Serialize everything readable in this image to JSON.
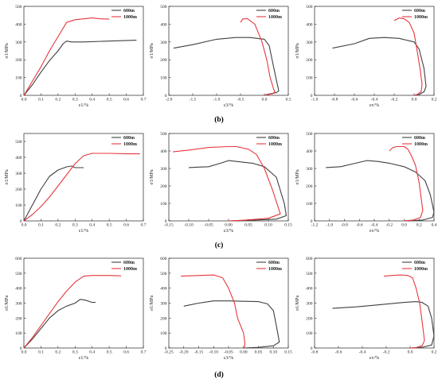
{
  "row_labels": [
    "(b)",
    "(c)",
    "(d)"
  ],
  "colors": {
    "600m": "#404040",
    "1000m": "#e8373e",
    "axis": "#222222"
  },
  "chart_data": [
    {
      "type": "line",
      "xlabel": "ε1/%",
      "ylabel": "σ1/MPa",
      "xlim": [
        0,
        0.7
      ],
      "ylim": [
        0,
        500
      ],
      "xticks": [
        0,
        0.1,
        0.2,
        0.3,
        0.4,
        0.5,
        0.6,
        0.7
      ],
      "xtick_labels": [
        "0.0",
        "0.1",
        "0.2",
        "0.3",
        "0.4",
        "0.5",
        "0.6",
        "0.7"
      ],
      "yticks": [
        0,
        100,
        200,
        300,
        400,
        500
      ],
      "ytick_labels": [
        "0",
        "100",
        "200",
        "300",
        "400",
        "500"
      ],
      "legend": "top-right",
      "series": [
        {
          "name": "600m",
          "color": "#404040",
          "x": [
            0,
            0.05,
            0.1,
            0.15,
            0.2,
            0.23,
            0.25,
            0.28,
            0.35,
            0.5,
            0.66
          ],
          "y": [
            0,
            60,
            130,
            195,
            250,
            290,
            305,
            300,
            300,
            305,
            310
          ]
        },
        {
          "name": "1000m",
          "color": "#e8373e",
          "x": [
            0,
            0.05,
            0.1,
            0.15,
            0.2,
            0.25,
            0.3,
            0.35,
            0.4,
            0.45,
            0.5
          ],
          "y": [
            0,
            80,
            160,
            250,
            330,
            410,
            425,
            430,
            435,
            430,
            428
          ]
        }
      ]
    },
    {
      "type": "line",
      "xlabel": "ε3/%",
      "ylabel": "σ1/MPa",
      "xlim": [
        -2.0,
        0.5
      ],
      "ylim": [
        0,
        500
      ],
      "xticks": [
        -2.0,
        -1.5,
        -1.0,
        -0.5,
        0.0,
        0.5
      ],
      "xtick_labels": [
        "-2.0",
        "-1.5",
        "-1.0",
        "-0.5",
        "0.0",
        "0.5"
      ],
      "yticks": [
        0,
        100,
        200,
        300,
        400,
        500
      ],
      "ytick_labels": [
        "0",
        "100",
        "200",
        "300",
        "400",
        "500"
      ],
      "legend": "top-right",
      "series": [
        {
          "name": "600m",
          "color": "#404040",
          "x": [
            -1.9,
            -1.5,
            -1.0,
            -0.6,
            -0.3,
            0.0,
            0.1,
            0.2,
            0.3,
            0.25,
            0.05,
            0
          ],
          "y": [
            265,
            285,
            315,
            325,
            325,
            315,
            280,
            150,
            25,
            15,
            5,
            0
          ]
        },
        {
          "name": "1000m",
          "color": "#e8373e",
          "x": [
            -0.5,
            -0.45,
            -0.35,
            -0.2,
            -0.05,
            0.05,
            0.12,
            0.2,
            0.22,
            0.18,
            0.05,
            0
          ],
          "y": [
            410,
            430,
            430,
            400,
            300,
            200,
            100,
            30,
            20,
            10,
            3,
            0
          ]
        }
      ]
    },
    {
      "type": "line",
      "xlabel": "εv/%",
      "ylabel": "σ1/MPa",
      "xlim": [
        -1.0,
        0.2
      ],
      "ylim": [
        0,
        500
      ],
      "xticks": [
        -1.0,
        -0.8,
        -0.6,
        -0.4,
        -0.2,
        0.0,
        0.2
      ],
      "xtick_labels": [
        "-1.0",
        "-0.8",
        "-0.6",
        "-0.4",
        "-0.2",
        "0.0",
        "0.2"
      ],
      "yticks": [
        0,
        100,
        200,
        300,
        400,
        500
      ],
      "ytick_labels": [
        "0",
        "100",
        "200",
        "300",
        "400",
        "500"
      ],
      "legend": "top-right",
      "series": [
        {
          "name": "600m",
          "color": "#404040",
          "x": [
            -0.82,
            -0.6,
            -0.45,
            -0.3,
            -0.15,
            0.0,
            0.05,
            0.1,
            0.12,
            0.1,
            0.05,
            0
          ],
          "y": [
            265,
            290,
            320,
            325,
            320,
            300,
            260,
            150,
            50,
            20,
            5,
            0
          ]
        },
        {
          "name": "1000m",
          "color": "#e8373e",
          "x": [
            -0.2,
            -0.15,
            -0.1,
            -0.05,
            0.0,
            0.03,
            0.06,
            0.08,
            0.07,
            0.03,
            0
          ],
          "y": [
            420,
            435,
            430,
            410,
            350,
            250,
            150,
            60,
            20,
            5,
            0
          ]
        }
      ]
    },
    {
      "type": "line",
      "xlabel": "ε1/%",
      "ylabel": "σ1/MPa",
      "xlim": [
        0,
        0.7
      ],
      "ylim": [
        0,
        550
      ],
      "xticks": [
        0,
        0.1,
        0.2,
        0.3,
        0.4,
        0.5,
        0.6,
        0.7
      ],
      "xtick_labels": [
        "0.0",
        "0.1",
        "0.2",
        "0.3",
        "0.4",
        "0.5",
        "0.6",
        "0.7"
      ],
      "yticks": [
        0,
        100,
        200,
        300,
        400,
        500
      ],
      "ytick_labels": [
        "0",
        "100",
        "200",
        "300",
        "400",
        "500"
      ],
      "legend": "top-right",
      "series": [
        {
          "name": "600m",
          "color": "#404040",
          "x": [
            0,
            0.05,
            0.1,
            0.15,
            0.2,
            0.25,
            0.28,
            0.3,
            0.33,
            0.35
          ],
          "y": [
            0,
            100,
            200,
            280,
            320,
            340,
            345,
            335,
            335,
            335
          ]
        },
        {
          "name": "1000m",
          "color": "#e8373e",
          "x": [
            0,
            0.05,
            0.1,
            0.15,
            0.2,
            0.25,
            0.3,
            0.35,
            0.4,
            0.5,
            0.6,
            0.68
          ],
          "y": [
            0,
            40,
            90,
            150,
            220,
            290,
            360,
            410,
            425,
            425,
            422,
            422
          ]
        }
      ]
    },
    {
      "type": "line",
      "xlabel": "ε3/%",
      "ylabel": "σ1/MPa",
      "xlim": [
        -0.15,
        0.15
      ],
      "ylim": [
        0,
        500
      ],
      "xticks": [
        -0.15,
        -0.1,
        -0.05,
        0.0,
        0.05,
        0.1,
        0.15
      ],
      "xtick_labels": [
        "-0.15",
        "-0.10",
        "-0.05",
        "0.00",
        "0.05",
        "0.10",
        "0.15"
      ],
      "yticks": [
        0,
        100,
        200,
        300,
        400,
        500
      ],
      "ytick_labels": [
        "0",
        "100",
        "200",
        "300",
        "400",
        "500"
      ],
      "legend": "top-right",
      "series": [
        {
          "name": "600m",
          "color": "#404040",
          "x": [
            -0.1,
            -0.05,
            -0.02,
            0.0,
            0.02,
            0.06,
            0.09,
            0.12,
            0.14,
            0.145,
            0.12,
            0.05,
            0
          ],
          "y": [
            305,
            310,
            330,
            345,
            340,
            330,
            310,
            250,
            100,
            30,
            10,
            3,
            0
          ]
        },
        {
          "name": "1000m",
          "color": "#e8373e",
          "x": [
            -0.14,
            -0.1,
            -0.05,
            0.0,
            0.02,
            0.05,
            0.07,
            0.09,
            0.11,
            0.13,
            0.1,
            0.04,
            0
          ],
          "y": [
            395,
            405,
            420,
            425,
            425,
            410,
            380,
            300,
            180,
            40,
            15,
            4,
            0
          ]
        }
      ]
    },
    {
      "type": "line",
      "xlabel": "εv/%",
      "ylabel": "σ1/MPa",
      "xlim": [
        -1.2,
        0.4
      ],
      "ylim": [
        0,
        500
      ],
      "xticks": [
        -1.2,
        -1.0,
        -0.8,
        -0.6,
        -0.4,
        -0.2,
        0.0,
        0.2,
        0.4
      ],
      "xtick_labels": [
        "-1.2",
        "-1.0",
        "-0.8",
        "-0.6",
        "-0.4",
        "-0.2",
        "0.0",
        "0.2",
        "0.4"
      ],
      "yticks": [
        0,
        100,
        200,
        300,
        400,
        500
      ],
      "ytick_labels": [
        "0",
        "100",
        "200",
        "300",
        "400",
        "500"
      ],
      "legend": "top-right",
      "series": [
        {
          "name": "600m",
          "color": "#404040",
          "x": [
            -1.05,
            -0.85,
            -0.65,
            -0.5,
            -0.35,
            -0.2,
            0.0,
            0.15,
            0.28,
            0.35,
            0.4,
            0.38,
            0.25,
            0
          ],
          "y": [
            305,
            310,
            330,
            345,
            340,
            330,
            310,
            280,
            230,
            150,
            50,
            20,
            5,
            0
          ]
        },
        {
          "name": "1000m",
          "color": "#e8373e",
          "x": [
            -0.2,
            -0.15,
            -0.1,
            0.0,
            0.05,
            0.1,
            0.15,
            0.2,
            0.25,
            0.22,
            0.12,
            0
          ],
          "y": [
            400,
            420,
            425,
            425,
            410,
            370,
            320,
            220,
            60,
            20,
            5,
            0
          ]
        }
      ]
    },
    {
      "type": "line",
      "xlabel": "ε1/%",
      "ylabel": "σ1/MPa",
      "xlim": [
        0,
        0.7
      ],
      "ylim": [
        0,
        600
      ],
      "xticks": [
        0,
        0.1,
        0.2,
        0.3,
        0.4,
        0.5,
        0.6,
        0.7
      ],
      "xtick_labels": [
        "0.0",
        "0.1",
        "0.2",
        "0.3",
        "0.4",
        "0.5",
        "0.6",
        "0.7"
      ],
      "yticks": [
        0,
        100,
        200,
        300,
        400,
        500,
        600
      ],
      "ytick_labels": [
        "0",
        "100",
        "200",
        "300",
        "400",
        "500",
        "600"
      ],
      "legend": "top-right",
      "series": [
        {
          "name": "600m",
          "color": "#404040",
          "x": [
            0,
            0.05,
            0.1,
            0.15,
            0.2,
            0.25,
            0.3,
            0.33,
            0.36,
            0.4,
            0.42
          ],
          "y": [
            0,
            60,
            130,
            200,
            250,
            280,
            300,
            325,
            320,
            305,
            305
          ]
        },
        {
          "name": "1000m",
          "color": "#e8373e",
          "x": [
            0,
            0.05,
            0.1,
            0.15,
            0.2,
            0.25,
            0.3,
            0.35,
            0.4,
            0.5,
            0.57
          ],
          "y": [
            0,
            70,
            150,
            230,
            310,
            380,
            440,
            480,
            485,
            485,
            482
          ]
        }
      ]
    },
    {
      "type": "line",
      "xlabel": "ε3/%",
      "ylabel": "σ1/MPa",
      "xlim": [
        -0.25,
        0.15
      ],
      "ylim": [
        0,
        600
      ],
      "xticks": [
        -0.25,
        -0.2,
        -0.15,
        -0.1,
        -0.05,
        0.0,
        0.05,
        0.1,
        0.15
      ],
      "xtick_labels": [
        "-0.25",
        "-0.20",
        "-0.15",
        "-0.10",
        "-0.05",
        "0.00",
        "0.05",
        "0.10",
        "0.15"
      ],
      "yticks": [
        0,
        100,
        200,
        300,
        400,
        500,
        600
      ],
      "ytick_labels": [
        "0",
        "100",
        "200",
        "300",
        "400",
        "500",
        "600"
      ],
      "legend": "top-right",
      "series": [
        {
          "name": "600m",
          "color": "#404040",
          "x": [
            -0.2,
            -0.15,
            -0.1,
            -0.05,
            0.0,
            0.05,
            0.08,
            0.1,
            0.11,
            0.12,
            0.1,
            0.05,
            0
          ],
          "y": [
            280,
            300,
            315,
            315,
            312,
            310,
            295,
            250,
            150,
            40,
            15,
            4,
            0
          ]
        },
        {
          "name": "1000m",
          "color": "#e8373e",
          "x": [
            -0.21,
            -0.15,
            -0.1,
            -0.07,
            -0.05,
            -0.03,
            -0.02,
            0.0,
            0.005,
            0.003,
            0
          ],
          "y": [
            480,
            485,
            488,
            470,
            400,
            300,
            200,
            100,
            30,
            8,
            0
          ]
        }
      ]
    },
    {
      "type": "line",
      "xlabel": "εv/%",
      "ylabel": "σ1/MPa",
      "xlim": [
        -0.8,
        0.2
      ],
      "ylim": [
        0,
        600
      ],
      "xticks": [
        -0.8,
        -0.6,
        -0.4,
        -0.2,
        0.0,
        0.2
      ],
      "xtick_labels": [
        "-0.8",
        "-0.6",
        "-0.4",
        "-0.2",
        "0.0",
        "0.2"
      ],
      "yticks": [
        0,
        100,
        200,
        300,
        400,
        500,
        600
      ],
      "ytick_labels": [
        "0",
        "100",
        "200",
        "300",
        "400",
        "500",
        "600"
      ],
      "legend": "top-right",
      "series": [
        {
          "name": "600m",
          "color": "#404040",
          "x": [
            -0.65,
            -0.45,
            -0.25,
            -0.05,
            0.05,
            0.1,
            0.15,
            0.18,
            0.2,
            0.18,
            0.1,
            0
          ],
          "y": [
            265,
            275,
            290,
            305,
            310,
            305,
            280,
            200,
            80,
            20,
            5,
            0
          ]
        },
        {
          "name": "1000m",
          "color": "#e8373e",
          "x": [
            -0.22,
            -0.15,
            -0.08,
            -0.02,
            0.02,
            0.05,
            0.08,
            0.1,
            0.12,
            0.1,
            0.05,
            0
          ],
          "y": [
            480,
            485,
            488,
            485,
            470,
            400,
            300,
            180,
            50,
            15,
            3,
            0
          ]
        }
      ]
    }
  ]
}
